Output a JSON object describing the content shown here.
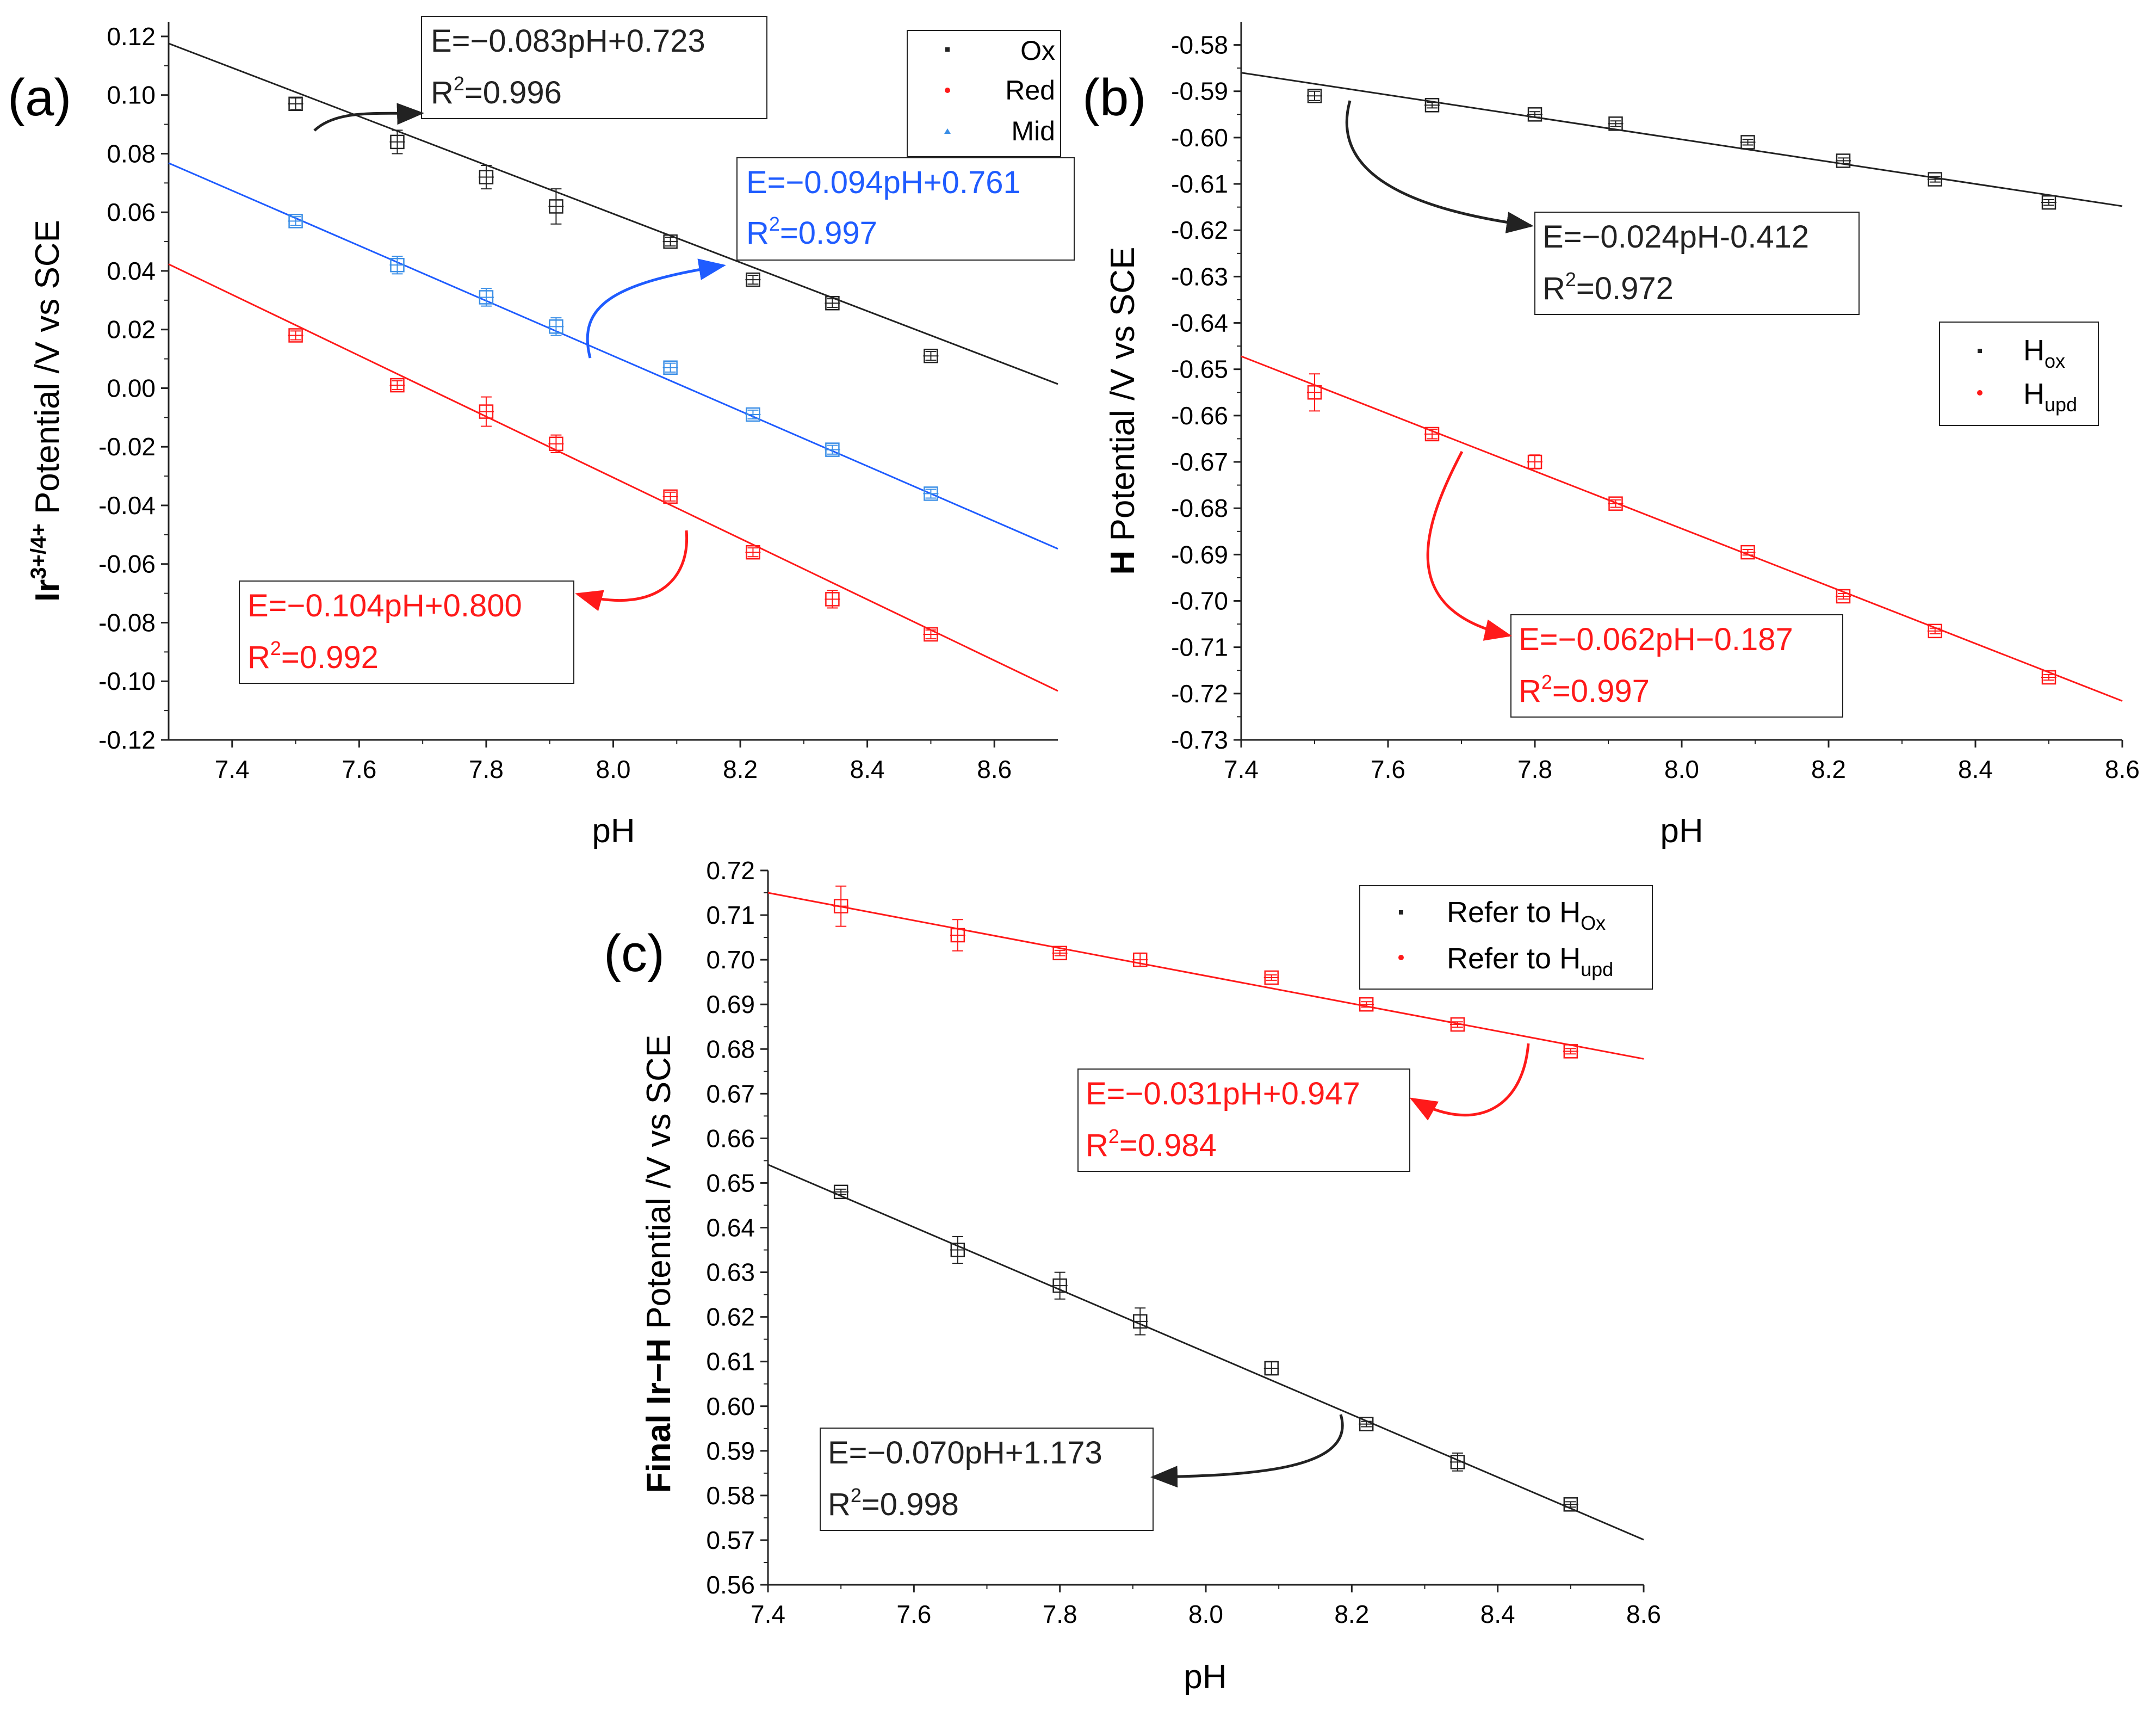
{
  "figure": {
    "panel_labels": [
      "(a)",
      "(b)",
      "(c)"
    ]
  },
  "colors": {
    "black": "#222222",
    "red": "#ff1a1a",
    "blue": "#1f5cff",
    "lightblue": "#3a8ee6"
  },
  "chart_data": [
    {
      "id": "a",
      "type": "scatter",
      "panel_label": "(a)",
      "xlabel": "pH",
      "ylabel_main": "Ir",
      "ylabel_sup": "3+/4+",
      "ylabel_rest": " Potential /V vs SCE",
      "xlim": [
        7.3,
        8.7
      ],
      "ylim": [
        -0.12,
        0.125
      ],
      "xticks": [
        "7.4",
        "7.6",
        "7.8",
        "8.0",
        "8.2",
        "8.4",
        "8.6"
      ],
      "yticks": [
        "-0.12",
        "-0.10",
        "-0.08",
        "-0.06",
        "-0.04",
        "-0.02",
        "0.00",
        "0.02",
        "0.04",
        "0.06",
        "0.08",
        "0.10",
        "0.12"
      ],
      "legend": [
        {
          "label": "Ox",
          "sub": "",
          "color": "#222222"
        },
        {
          "label": "Red",
          "sub": "",
          "color": "#ff1a1a"
        },
        {
          "label": "Mid",
          "sub": "",
          "color": "#3a8ee6"
        }
      ],
      "series": [
        {
          "name": "Ox",
          "color": "#222222",
          "fit": [
            -0.083,
            0.723
          ],
          "x": [
            7.5,
            7.66,
            7.8,
            7.91,
            8.09,
            8.22,
            8.345,
            8.5
          ],
          "y": [
            0.097,
            0.084,
            0.072,
            0.062,
            0.05,
            0.037,
            0.029,
            0.011
          ],
          "yerr": [
            0.002,
            0.004,
            0.004,
            0.006,
            0.0015,
            0.0015,
            0.0015,
            0.0015
          ]
        },
        {
          "name": "Red",
          "color": "#ff1a1a",
          "fit": [
            -0.104,
            0.8
          ],
          "x": [
            7.5,
            7.66,
            7.8,
            7.91,
            8.09,
            8.22,
            8.345,
            8.5
          ],
          "y": [
            0.018,
            0.001,
            -0.008,
            -0.019,
            -0.037,
            -0.056,
            -0.072,
            -0.084
          ],
          "yerr": [
            0.0015,
            0.0015,
            0.005,
            0.003,
            0.0015,
            0.0015,
            0.003,
            0.0015
          ]
        },
        {
          "name": "Mid",
          "color": "#3a8ee6",
          "fit": [
            -0.094,
            0.761
          ],
          "x": [
            7.5,
            7.66,
            7.8,
            7.91,
            8.09,
            8.22,
            8.345,
            8.5
          ],
          "y": [
            0.057,
            0.042,
            0.031,
            0.021,
            0.007,
            -0.009,
            -0.021,
            -0.036
          ],
          "yerr": [
            0.0015,
            0.003,
            0.003,
            0.003,
            0.0015,
            0.0015,
            0.0015,
            0.0015
          ]
        }
      ],
      "fit_lines": [
        {
          "color": "#222222",
          "slope": -0.083,
          "intercept": 0.7235
        },
        {
          "color": "#1f5cff",
          "slope": -0.094,
          "intercept": 0.763
        },
        {
          "color": "#ff1a1a",
          "slope": -0.104,
          "intercept": 0.8015
        }
      ],
      "annotations": [
        {
          "eq": "E=−0.083pH+0.723",
          "r2_label": "R",
          "r2_value": "=0.996",
          "color": "#222222"
        },
        {
          "eq": "E=−0.094pH+0.761",
          "r2_label": "R",
          "r2_value": "=0.997",
          "color": "#1f5cff"
        },
        {
          "eq": "E=−0.104pH+0.800",
          "r2_label": "R",
          "r2_value": "=0.992",
          "color": "#ff1a1a"
        }
      ]
    },
    {
      "id": "b",
      "type": "scatter",
      "panel_label": "(b)",
      "xlabel": "pH",
      "ylabel_main": "H",
      "ylabel_sup": "",
      "ylabel_rest": " Potential /V vs SCE",
      "xlim": [
        7.4,
        8.6
      ],
      "ylim": [
        -0.73,
        -0.575
      ],
      "xticks": [
        "7.4",
        "7.6",
        "7.8",
        "8.0",
        "8.2",
        "8.4",
        "8.6"
      ],
      "yticks": [
        "-0.73",
        "-0.72",
        "-0.71",
        "-0.70",
        "-0.69",
        "-0.68",
        "-0.67",
        "-0.66",
        "-0.65",
        "-0.64",
        "-0.63",
        "-0.62",
        "-0.61",
        "-0.60",
        "-0.59",
        "-0.58"
      ],
      "legend": [
        {
          "label": "H",
          "sub": "ox",
          "color": "#222222"
        },
        {
          "label": "H",
          "sub": "upd",
          "color": "#ff1a1a"
        }
      ],
      "series": [
        {
          "name": "Hox",
          "color": "#222222",
          "fit": [
            -0.024,
            -0.412
          ],
          "x": [
            7.5,
            7.66,
            7.8,
            7.91,
            8.09,
            8.22,
            8.345,
            8.5
          ],
          "y": [
            -0.591,
            -0.593,
            -0.595,
            -0.597,
            -0.601,
            -0.605,
            -0.609,
            -0.614
          ],
          "yerr": [
            0.001,
            0.0006,
            0.0006,
            0.0006,
            0.0006,
            0.0006,
            0.0006,
            0.0006
          ]
        },
        {
          "name": "Hupd",
          "color": "#ff1a1a",
          "fit": [
            -0.062,
            -0.187
          ],
          "x": [
            7.5,
            7.66,
            7.8,
            7.91,
            8.09,
            8.22,
            8.345,
            8.5
          ],
          "y": [
            -0.655,
            -0.664,
            -0.67,
            -0.679,
            -0.6895,
            -0.699,
            -0.7065,
            -0.7165
          ],
          "yerr": [
            0.004,
            0.001,
            0.0015,
            0.0008,
            0.0006,
            0.0006,
            0.0006,
            0.0006
          ]
        }
      ],
      "fit_lines": [
        {
          "color": "#222222",
          "slope": -0.024,
          "intercept": -0.4084
        },
        {
          "color": "#ff1a1a",
          "slope": -0.062,
          "intercept": -0.1884
        }
      ],
      "annotations": [
        {
          "eq": "E=−0.024pH-0.412",
          "r2_label": "R",
          "r2_value": "=0.972",
          "color": "#222222"
        },
        {
          "eq": "E=−0.062pH−0.187",
          "r2_label": "R",
          "r2_value": "=0.997",
          "color": "#ff1a1a"
        }
      ]
    },
    {
      "id": "c",
      "type": "scatter",
      "panel_label": "(c)",
      "xlabel": "pH",
      "ylabel_main": "Final Ir−H",
      "ylabel_sup": "",
      "ylabel_rest": " Potential /V vs SCE",
      "xlim": [
        7.4,
        8.6
      ],
      "ylim": [
        0.56,
        0.72
      ],
      "xticks": [
        "7.4",
        "7.6",
        "7.8",
        "8.0",
        "8.2",
        "8.4",
        "8.6"
      ],
      "yticks": [
        "0.56",
        "0.57",
        "0.58",
        "0.59",
        "0.60",
        "0.61",
        "0.62",
        "0.63",
        "0.64",
        "0.65",
        "0.66",
        "0.67",
        "0.68",
        "0.69",
        "0.70",
        "0.71",
        "0.72"
      ],
      "legend": [
        {
          "label": "Refer to H",
          "sub": "Ox",
          "color": "#222222"
        },
        {
          "label": "Refer to H",
          "sub": "upd",
          "color": "#ff1a1a"
        }
      ],
      "series": [
        {
          "name": "Refer to HOx",
          "color": "#222222",
          "fit": [
            -0.07,
            1.173
          ],
          "x": [
            7.5,
            7.66,
            7.8,
            7.91,
            8.09,
            8.22,
            8.345,
            8.5
          ],
          "y": [
            0.648,
            0.635,
            0.627,
            0.619,
            0.6085,
            0.596,
            0.5875,
            0.578
          ],
          "yerr": [
            0.0006,
            0.003,
            0.003,
            0.003,
            0.0015,
            0.0006,
            0.002,
            0.0006
          ]
        },
        {
          "name": "Refer to Hupd",
          "color": "#ff1a1a",
          "fit": [
            -0.031,
            0.947
          ],
          "x": [
            7.5,
            7.66,
            7.8,
            7.91,
            8.09,
            8.22,
            8.345,
            8.5
          ],
          "y": [
            0.712,
            0.7055,
            0.7015,
            0.7,
            0.696,
            0.69,
            0.6855,
            0.6795
          ],
          "yerr": [
            0.0045,
            0.0035,
            0.0006,
            0.0015,
            0.0006,
            0.0006,
            0.0006,
            0.0006
          ]
        }
      ],
      "fit_lines": [
        {
          "color": "#222222",
          "slope": -0.07,
          "intercept": 1.1721
        },
        {
          "color": "#ff1a1a",
          "slope": -0.031,
          "intercept": 0.9444
        }
      ],
      "annotations": [
        {
          "eq": "E=−0.031pH+0.947",
          "r2_label": "R",
          "r2_value": "=0.984",
          "color": "#ff1a1a"
        },
        {
          "eq": "E=−0.070pH+1.173",
          "r2_label": "R",
          "r2_value": "=0.998",
          "color": "#222222"
        }
      ]
    }
  ]
}
